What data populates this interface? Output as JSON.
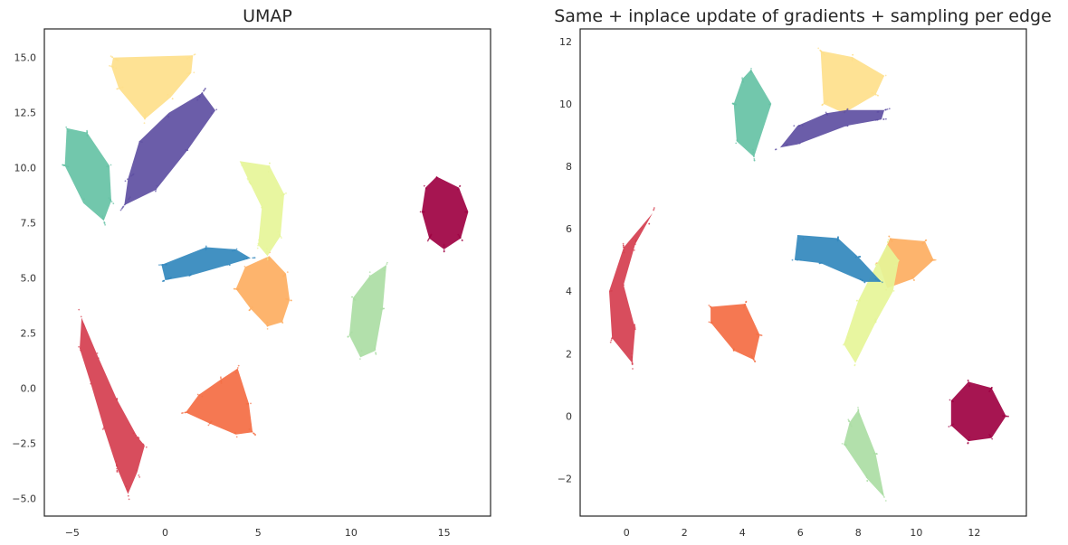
{
  "chart_data": [
    {
      "type": "scatter",
      "title": "UMAP",
      "xlabel": "",
      "ylabel": "",
      "xlim": [
        -6.5,
        17.5
      ],
      "ylim": [
        -5.8,
        16.3
      ],
      "xticks": [
        -5,
        0,
        5,
        10,
        15
      ],
      "xtick_labels": [
        "−5",
        "0",
        "5",
        "10",
        "15"
      ],
      "yticks": [
        -5.0,
        -2.5,
        0.0,
        2.5,
        5.0,
        7.5,
        10.0,
        12.5,
        15.0
      ],
      "ytick_labels": [
        "−5.0",
        "−2.5",
        "0.0",
        "2.5",
        "5.0",
        "7.5",
        "10.0",
        "12.5",
        "15.0"
      ],
      "grid": false,
      "clusters": [
        {
          "color": "#9e0142",
          "points": [
            [
              14.6,
              9.6
            ],
            [
              15.8,
              9.1
            ],
            [
              16.3,
              8.0
            ],
            [
              15.9,
              6.8
            ],
            [
              15.0,
              6.3
            ],
            [
              14.2,
              6.8
            ],
            [
              13.8,
              8.0
            ],
            [
              14.0,
              9.1
            ]
          ]
        },
        {
          "color": "#d53e4f",
          "points": [
            [
              -4.5,
              3.2
            ],
            [
              -3.6,
              1.4
            ],
            [
              -2.6,
              -0.5
            ],
            [
              -1.5,
              -2.2
            ],
            [
              -1.1,
              -2.6
            ],
            [
              -1.5,
              -3.8
            ],
            [
              -2.0,
              -4.8
            ],
            [
              -2.6,
              -3.6
            ],
            [
              -3.3,
              -1.8
            ],
            [
              -4.0,
              0.2
            ],
            [
              -4.6,
              1.8
            ]
          ]
        },
        {
          "color": "#f46d43",
          "points": [
            [
              3.9,
              0.9
            ],
            [
              4.5,
              -0.7
            ],
            [
              4.7,
              -2.0
            ],
            [
              3.8,
              -2.1
            ],
            [
              2.4,
              -1.6
            ],
            [
              1.1,
              -1.1
            ],
            [
              1.8,
              -0.3
            ],
            [
              3.0,
              0.4
            ]
          ]
        },
        {
          "color": "#fdae61",
          "points": [
            [
              5.6,
              6.0
            ],
            [
              6.5,
              5.2
            ],
            [
              6.7,
              4.0
            ],
            [
              6.3,
              3.0
            ],
            [
              5.5,
              2.8
            ],
            [
              4.6,
              3.6
            ],
            [
              3.8,
              4.5
            ],
            [
              4.3,
              5.5
            ]
          ]
        },
        {
          "color": "#fee08b",
          "points": [
            [
              -2.8,
              15.0
            ],
            [
              1.5,
              15.1
            ],
            [
              1.4,
              14.3
            ],
            [
              0.3,
              13.2
            ],
            [
              -1.1,
              12.2
            ],
            [
              -2.5,
              13.6
            ],
            [
              -2.9,
              14.6
            ]
          ]
        },
        {
          "color": "#e6f598",
          "points": [
            [
              4.0,
              10.3
            ],
            [
              5.6,
              10.1
            ],
            [
              6.4,
              8.8
            ],
            [
              6.2,
              6.9
            ],
            [
              5.5,
              6.0
            ],
            [
              5.0,
              6.5
            ],
            [
              5.2,
              8.2
            ],
            [
              4.5,
              9.4
            ]
          ]
        },
        {
          "color": "#abdda4",
          "points": [
            [
              11.9,
              5.6
            ],
            [
              11.7,
              3.6
            ],
            [
              11.3,
              1.7
            ],
            [
              10.5,
              1.4
            ],
            [
              9.9,
              2.4
            ],
            [
              10.1,
              4.1
            ],
            [
              11.0,
              5.1
            ]
          ]
        },
        {
          "color": "#66c2a5",
          "points": [
            [
              -5.3,
              11.8
            ],
            [
              -4.2,
              11.6
            ],
            [
              -3.0,
              10.1
            ],
            [
              -2.9,
              8.5
            ],
            [
              -3.3,
              7.6
            ],
            [
              -4.4,
              8.4
            ],
            [
              -5.4,
              10.1
            ]
          ]
        },
        {
          "color": "#3288bd",
          "points": [
            [
              -0.2,
              5.6
            ],
            [
              2.2,
              6.4
            ],
            [
              3.8,
              6.3
            ],
            [
              4.6,
              5.9
            ],
            [
              3.4,
              5.6
            ],
            [
              1.3,
              5.1
            ],
            [
              0.0,
              4.9
            ]
          ]
        },
        {
          "color": "#5e4fa2",
          "points": [
            [
              2.0,
              13.4
            ],
            [
              2.7,
              12.6
            ],
            [
              1.2,
              10.8
            ],
            [
              -0.5,
              9.0
            ],
            [
              -2.2,
              8.3
            ],
            [
              -2.0,
              9.5
            ],
            [
              -1.4,
              11.2
            ],
            [
              0.2,
              12.5
            ]
          ]
        }
      ]
    },
    {
      "type": "scatter",
      "title": "Same + inplace update of gradients + sampling per edge",
      "xlabel": "",
      "ylabel": "",
      "xlim": [
        -1.6,
        13.8
      ],
      "ylim": [
        -3.2,
        12.4
      ],
      "xticks": [
        0,
        2,
        4,
        6,
        8,
        10,
        12
      ],
      "xtick_labels": [
        "0",
        "2",
        "4",
        "6",
        "8",
        "10",
        "12"
      ],
      "yticks": [
        -2,
        0,
        2,
        4,
        6,
        8,
        10,
        12
      ],
      "ytick_labels": [
        "−2",
        "0",
        "2",
        "4",
        "6",
        "8",
        "10",
        "12"
      ],
      "grid": false,
      "clusters": [
        {
          "color": "#9e0142",
          "points": [
            [
              11.8,
              1.1
            ],
            [
              12.6,
              0.9
            ],
            [
              13.1,
              0.0
            ],
            [
              12.6,
              -0.7
            ],
            [
              11.8,
              -0.8
            ],
            [
              11.2,
              -0.3
            ],
            [
              11.2,
              0.5
            ]
          ]
        },
        {
          "color": "#d53e4f",
          "points": [
            [
              0.9,
              6.5
            ],
            [
              0.3,
              5.5
            ],
            [
              -0.1,
              4.2
            ],
            [
              0.3,
              2.8
            ],
            [
              0.2,
              1.7
            ],
            [
              -0.5,
              2.5
            ],
            [
              -0.6,
              4.0
            ],
            [
              -0.1,
              5.4
            ]
          ]
        },
        {
          "color": "#f46d43",
          "points": [
            [
              2.9,
              3.5
            ],
            [
              4.1,
              3.6
            ],
            [
              4.6,
              2.6
            ],
            [
              4.4,
              1.8
            ],
            [
              3.7,
              2.1
            ],
            [
              2.9,
              3.0
            ]
          ]
        },
        {
          "color": "#fdae61",
          "points": [
            [
              9.1,
              5.7
            ],
            [
              10.3,
              5.6
            ],
            [
              10.6,
              5.0
            ],
            [
              9.9,
              4.4
            ],
            [
              9.0,
              4.1
            ],
            [
              8.7,
              4.9
            ]
          ]
        },
        {
          "color": "#fee08b",
          "points": [
            [
              6.7,
              11.7
            ],
            [
              7.8,
              11.5
            ],
            [
              8.9,
              10.9
            ],
            [
              8.6,
              10.3
            ],
            [
              7.5,
              9.7
            ],
            [
              6.8,
              10.0
            ]
          ]
        },
        {
          "color": "#e6f598",
          "points": [
            [
              9.0,
              5.5
            ],
            [
              9.4,
              5.0
            ],
            [
              9.2,
              4.0
            ],
            [
              8.6,
              3.0
            ],
            [
              7.9,
              1.7
            ],
            [
              7.5,
              2.3
            ],
            [
              8.0,
              3.7
            ],
            [
              8.6,
              4.8
            ]
          ]
        },
        {
          "color": "#abdda4",
          "points": [
            [
              8.0,
              0.2
            ],
            [
              8.6,
              -1.2
            ],
            [
              8.9,
              -2.6
            ],
            [
              8.3,
              -2.0
            ],
            [
              7.5,
              -0.9
            ],
            [
              7.7,
              -0.2
            ]
          ]
        },
        {
          "color": "#66c2a5",
          "points": [
            [
              4.3,
              11.1
            ],
            [
              5.0,
              10.0
            ],
            [
              4.4,
              8.3
            ],
            [
              3.8,
              8.8
            ],
            [
              3.7,
              10.0
            ],
            [
              4.0,
              10.8
            ]
          ]
        },
        {
          "color": "#3288bd",
          "points": [
            [
              5.9,
              5.8
            ],
            [
              7.3,
              5.7
            ],
            [
              8.0,
              5.1
            ],
            [
              8.8,
              4.3
            ],
            [
              8.2,
              4.3
            ],
            [
              6.7,
              4.9
            ],
            [
              5.8,
              5.0
            ]
          ]
        },
        {
          "color": "#5e4fa2",
          "points": [
            [
              7.6,
              9.8
            ],
            [
              8.9,
              9.8
            ],
            [
              8.8,
              9.5
            ],
            [
              7.6,
              9.3
            ],
            [
              5.9,
              8.7
            ],
            [
              5.3,
              8.6
            ],
            [
              5.9,
              9.3
            ],
            [
              6.9,
              9.7
            ]
          ]
        }
      ]
    }
  ]
}
